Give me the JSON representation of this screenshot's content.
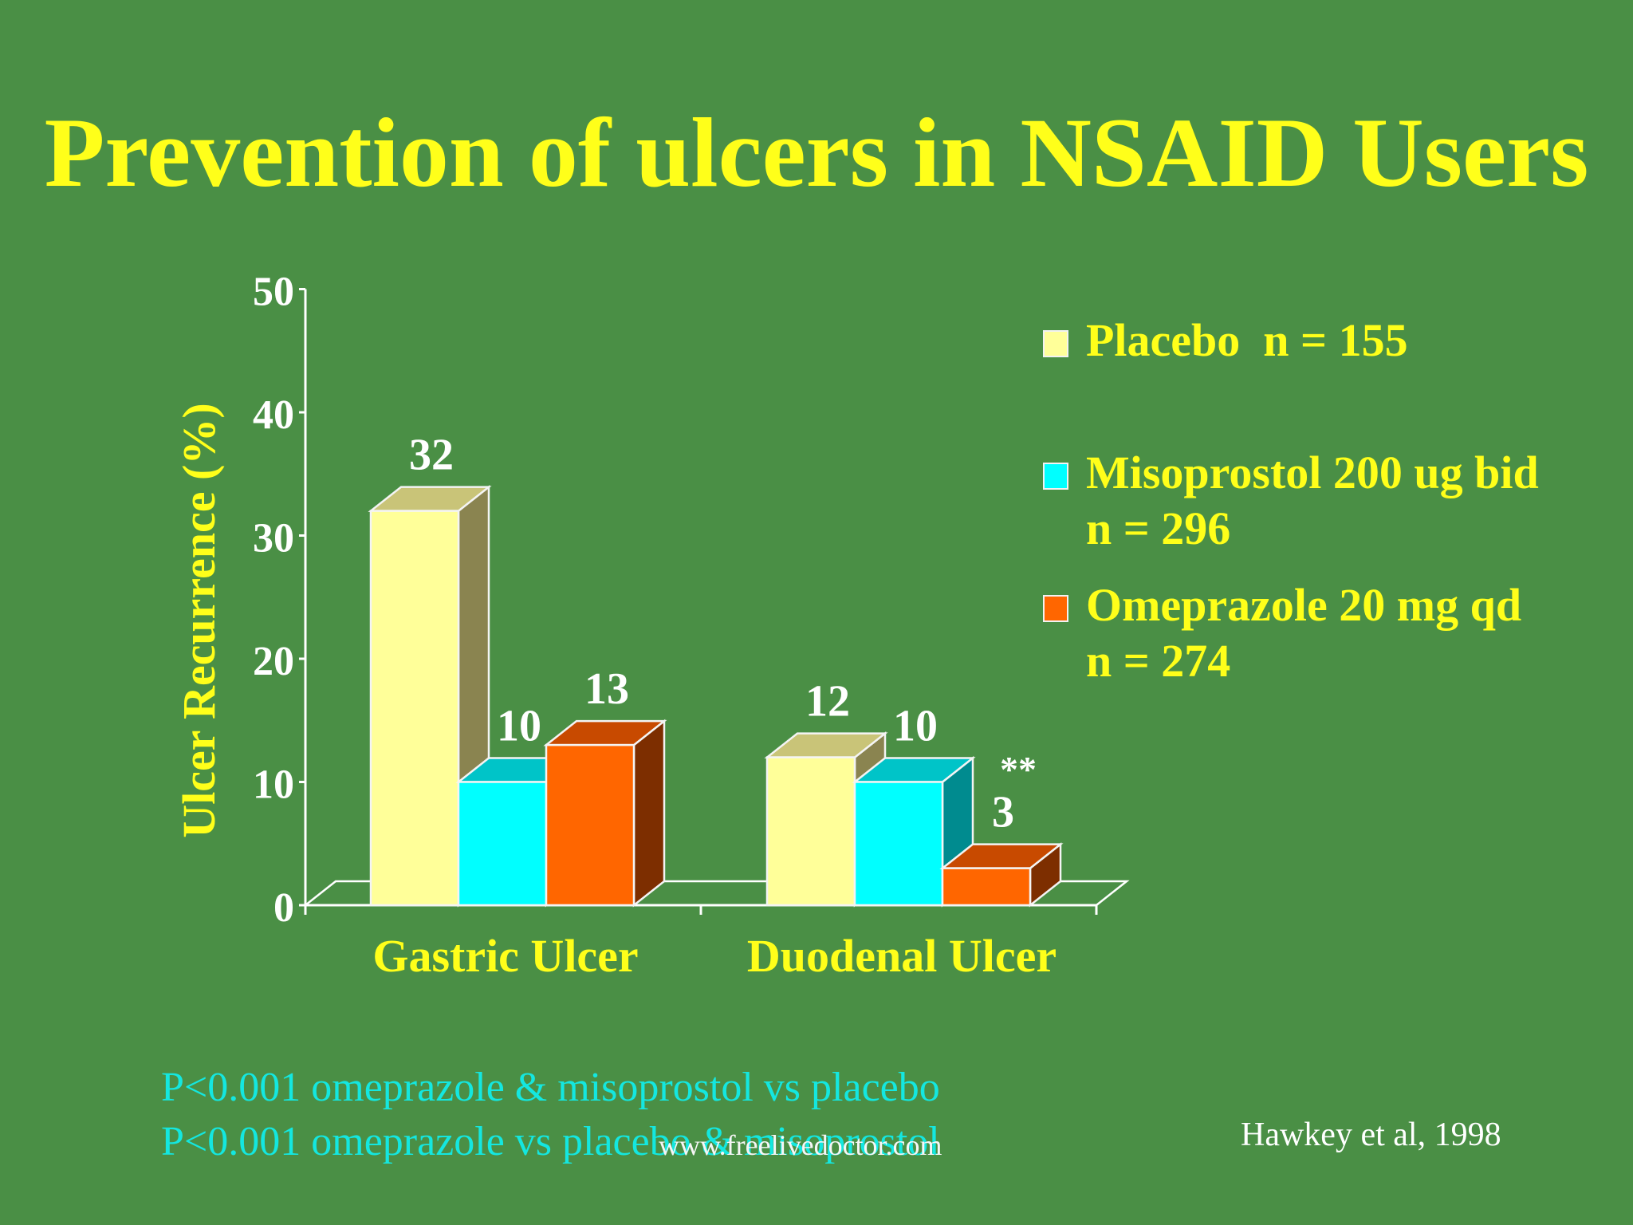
{
  "slide": {
    "title": "Prevention of ulcers in NSAID Users"
  },
  "chart_data": {
    "type": "bar",
    "ylabel": "Ulcer Recurrence (%)",
    "xlabel": "",
    "ylim": [
      0,
      50
    ],
    "yticks": [
      "0",
      "10",
      "20",
      "30",
      "40",
      "50"
    ],
    "categories": [
      "Gastric Ulcer",
      "Duodenal Ulcer"
    ],
    "series": [
      {
        "name": "Placebo  n = 155",
        "values": [
          32,
          12
        ],
        "labels": [
          "32",
          "12"
        ],
        "color": "#ffff99",
        "side": "#8a8450",
        "top": "#c9c478"
      },
      {
        "name": "Misoprostol 200 ug bid\nn = 296",
        "values": [
          10,
          10
        ],
        "labels": [
          "10",
          "10"
        ],
        "color": "#00ffff",
        "side": "#008b8f",
        "top": "#00c4c8"
      },
      {
        "name": "Omeprazole 20 mg qd\nn = 274",
        "values": [
          13,
          3
        ],
        "labels": [
          "13",
          "3"
        ],
        "color": "#ff6600",
        "side": "#7d2e00",
        "top": "#c84a00"
      }
    ],
    "annotations": [
      "**"
    ],
    "legend_position": "right",
    "grid": false
  },
  "footnotes": [
    "P<0.001 omeprazole & misoprostol vs placebo",
    "P<0.001 omeprazole vs placebo & misoprostol"
  ],
  "watermark": "www.freelivedoctor.com",
  "citation": "Hawkey et al, 1998"
}
